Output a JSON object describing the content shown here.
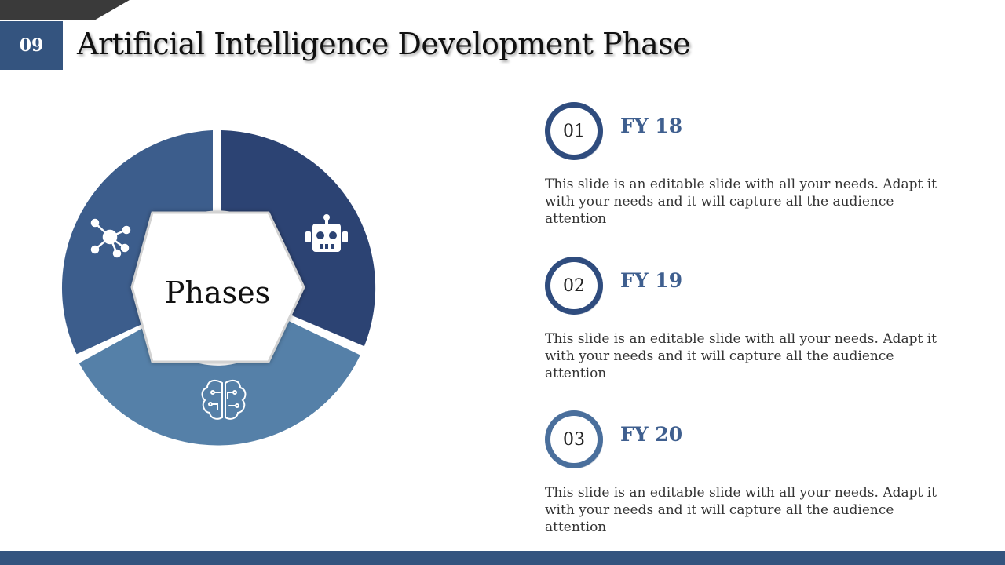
{
  "slide": {
    "number": "09",
    "title": "Artificial Intelligence Development Phase"
  },
  "diagram": {
    "center_label": "Phases",
    "segments": [
      {
        "icon": "robot-icon",
        "color": "#2c4373"
      },
      {
        "icon": "brain-circuit-icon",
        "color": "#5580a8"
      },
      {
        "icon": "network-nodes-icon",
        "color": "#3c5d8c"
      }
    ]
  },
  "phases": [
    {
      "number": "01",
      "label": "FY 18",
      "description": "This slide is an editable slide with all your needs. Adapt it with your needs and it will capture all the audience attention"
    },
    {
      "number": "02",
      "label": "FY 19",
      "description": "This slide is an editable slide with all your needs. Adapt it with your needs and it will capture all the audience attention"
    },
    {
      "number": "03",
      "label": "FY 20",
      "description": "This slide is an editable slide with all your needs. Adapt it with your needs and it will capture all the audience attention"
    }
  ],
  "colors": {
    "accent": "#34547f",
    "label": "#3f5f8f",
    "top_tab": "#3a3a3a"
  }
}
